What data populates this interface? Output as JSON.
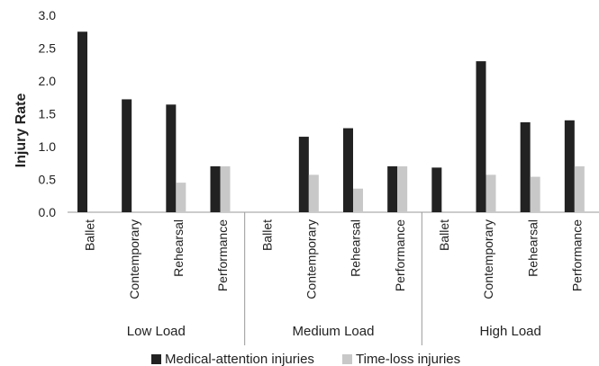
{
  "chart_data": {
    "type": "bar",
    "title": "",
    "xlabel": "",
    "ylabel": "Injury Rate",
    "ylim": [
      0,
      3.0
    ],
    "yticks": [
      "0.0",
      "0.5",
      "1.0",
      "1.5",
      "2.0",
      "2.5",
      "3.0"
    ],
    "grid": false,
    "legend_position": "bottom",
    "groups": [
      {
        "label": "Low Load",
        "categories": [
          "Ballet",
          "Contemporary",
          "Rehearsal",
          "Performance"
        ]
      },
      {
        "label": "Medium Load",
        "categories": [
          "Ballet",
          "Contemporary",
          "Rehearsal",
          "Performance"
        ]
      },
      {
        "label": "High Load",
        "categories": [
          "Ballet",
          "Contemporary",
          "Rehearsal",
          "Performance"
        ]
      }
    ],
    "series": [
      {
        "name": "Medical-attention injuries",
        "color": "#222222",
        "values": [
          2.75,
          1.72,
          1.64,
          0.7,
          0.0,
          1.15,
          1.28,
          0.7,
          0.68,
          2.3,
          1.37,
          1.4
        ]
      },
      {
        "name": "Time-loss injuries",
        "color": "#c8c8c8",
        "values": [
          0.0,
          0.0,
          0.45,
          0.7,
          0.0,
          0.57,
          0.36,
          0.7,
          0.0,
          0.57,
          0.54,
          0.7
        ]
      }
    ]
  }
}
